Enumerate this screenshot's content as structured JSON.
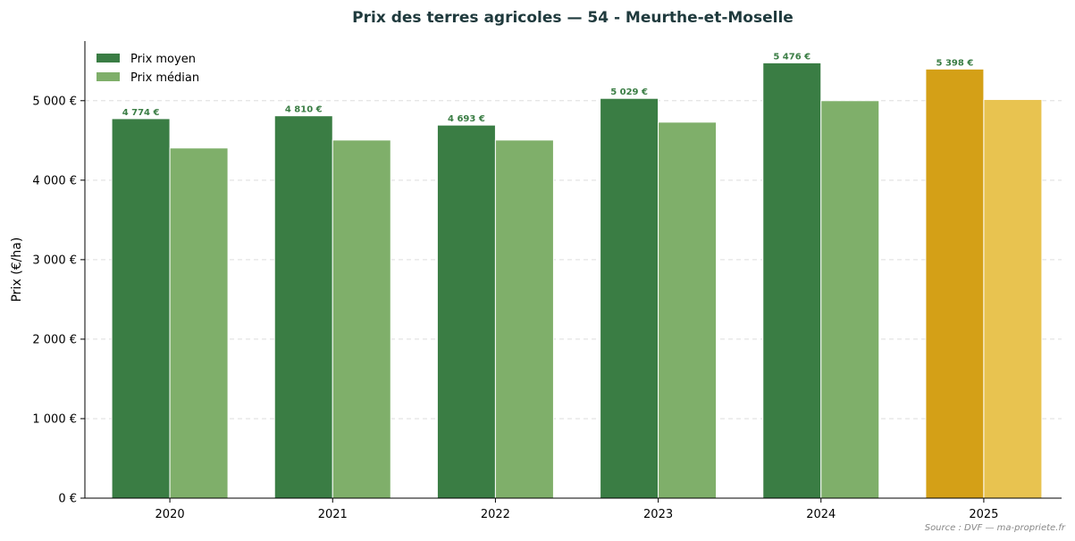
{
  "chart_data": {
    "type": "bar",
    "title": "Prix des terres agricoles — 54 - Meurthe-et-Moselle",
    "xlabel": "",
    "ylabel": "Prix (€/ha)",
    "ylim": [
      0,
      5750
    ],
    "y_ticks": [
      0,
      1000,
      2000,
      3000,
      4000,
      5000
    ],
    "y_tick_labels": [
      "0 €",
      "1 000 €",
      "2 000 €",
      "3 000 €",
      "4 000 €",
      "5 000 €"
    ],
    "categories": [
      "2020",
      "2021",
      "2022",
      "2023",
      "2024",
      "2025"
    ],
    "series": [
      {
        "name": "Prix moyen",
        "values": [
          4774,
          4810,
          4693,
          5029,
          5476,
          5398
        ],
        "data_labels": [
          "4 774 €",
          "4 810 €",
          "4 693 €",
          "5 029 €",
          "5 476 €",
          "5 398 €"
        ],
        "color": "#3a7d44",
        "highlight_color": "#d4a017"
      },
      {
        "name": "Prix médian",
        "values": [
          4405,
          4505,
          4505,
          4730,
          5000,
          5015
        ],
        "color": "#7faf6a",
        "highlight_color": "#e8c350"
      }
    ],
    "highlight_category": "2025",
    "grid": "horizontal-dashed",
    "legend_position": "top-left",
    "colors": {
      "title": "#1f3a3d",
      "data_label": "#3a7d44",
      "grid": "#dddddd",
      "source": "#888888"
    }
  },
  "footer": {
    "source": "Source : DVF — ma-propriete.fr"
  }
}
